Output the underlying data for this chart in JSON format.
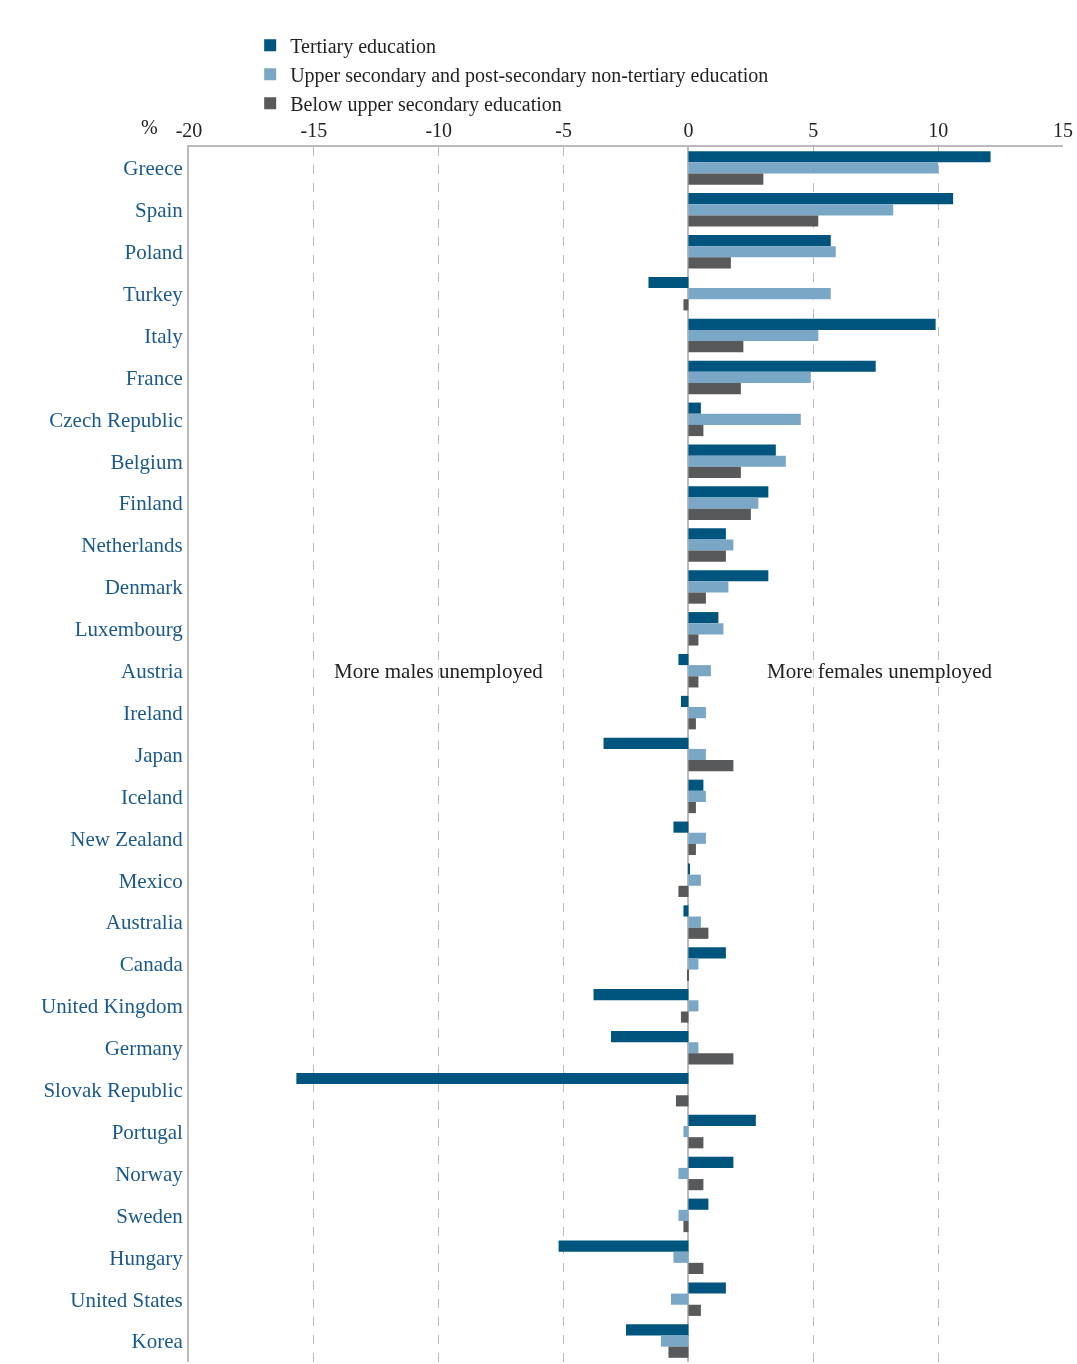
{
  "chart_data": {
    "type": "bar",
    "orientation": "horizontal",
    "xlabel": "%",
    "categories": [
      "Greece",
      "Spain",
      "Poland",
      "Turkey",
      "Italy",
      "France",
      "Czech Republic",
      "Belgium",
      "Finland",
      "Netherlands",
      "Denmark",
      "Luxembourg",
      "Austria",
      "Ireland",
      "Japan",
      "Iceland",
      "New Zealand",
      "Mexico",
      "Australia",
      "Canada",
      "United Kingdom",
      "Germany",
      "Slovak Republic",
      "Portugal",
      "Norway",
      "Sweden",
      "Hungary",
      "United States",
      "Korea"
    ],
    "series": [
      {
        "name": "Tertiary education",
        "color": "#00557f",
        "values": [
          12.1,
          10.6,
          5.7,
          -1.6,
          9.9,
          7.5,
          0.5,
          3.5,
          3.2,
          1.5,
          3.2,
          1.2,
          -0.4,
          -0.3,
          -3.4,
          0.6,
          -0.6,
          0.05,
          -0.2,
          1.5,
          -3.8,
          -3.1,
          -15.7,
          2.7,
          1.8,
          0.8,
          -5.2,
          1.5,
          -2.5
        ]
      },
      {
        "name": "Upper secondary and post-secondary non-tertiary education",
        "color": "#7ba7c7",
        "values": [
          10.0,
          8.2,
          5.9,
          5.7,
          5.2,
          4.9,
          4.5,
          3.9,
          2.8,
          1.8,
          1.6,
          1.4,
          0.9,
          0.7,
          0.7,
          0.7,
          0.7,
          0.5,
          0.5,
          0.4,
          0.4,
          0.4,
          0,
          -0.2,
          -0.4,
          -0.4,
          -0.6,
          -0.7,
          -1.1
        ]
      },
      {
        "name": "Below upper secondary education",
        "color": "#58595b",
        "values": [
          3.0,
          5.2,
          1.7,
          -0.2,
          2.2,
          2.1,
          0.6,
          2.1,
          2.5,
          1.5,
          0.7,
          0.4,
          0.4,
          0.3,
          1.8,
          0.3,
          0.3,
          -0.4,
          0.8,
          -0.05,
          -0.3,
          1.8,
          -0.5,
          0.6,
          0.6,
          -0.2,
          0.6,
          0.5,
          -0.8
        ]
      }
    ],
    "xlim": [
      -20,
      15
    ],
    "xticks": [
      -20,
      -15,
      -10,
      -5,
      0,
      5,
      10,
      15
    ],
    "grid": "x",
    "legend": "top",
    "annotations": [
      "More males unemployed",
      "More females unemployed"
    ]
  }
}
